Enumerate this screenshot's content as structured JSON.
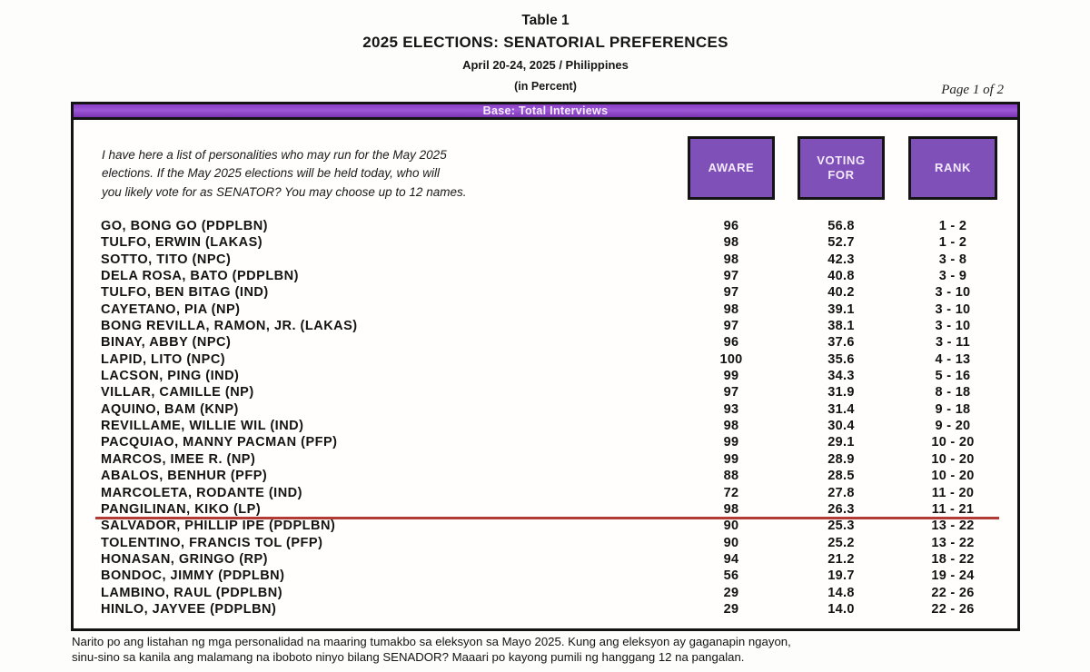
{
  "header": {
    "table_label": "Table 1",
    "title": "2025 ELECTIONS: SENATORIAL PREFERENCES",
    "subtitle": "April 20-24, 2025 / Philippines",
    "unit_note": "(in Percent)",
    "page_label": "Page 1 of 2"
  },
  "base_bar_label": "Base: Total Interviews",
  "question": {
    "lines": [
      "I have here a list of personalities who may run for the May 2025",
      "elections. If the May 2025 elections will be held today, who will",
      "you likely vote for as SENATOR? You may choose up to 12 names."
    ]
  },
  "columns": {
    "aware": "AWARE",
    "voting_for": "VOTING FOR",
    "rank": "RANK"
  },
  "table": {
    "rows": [
      {
        "name": "GO, BONG GO (PDPLBN)",
        "aware": "96",
        "voting_for": "56.8",
        "rank": "1 - 2",
        "underline_after": false
      },
      {
        "name": "TULFO, ERWIN (LAKAS)",
        "aware": "98",
        "voting_for": "52.7",
        "rank": "1 - 2",
        "underline_after": false
      },
      {
        "name": "SOTTO, TITO (NPC)",
        "aware": "98",
        "voting_for": "42.3",
        "rank": "3 - 8",
        "underline_after": false
      },
      {
        "name": "DELA ROSA, BATO (PDPLBN)",
        "aware": "97",
        "voting_for": "40.8",
        "rank": "3 - 9",
        "underline_after": false
      },
      {
        "name": "TULFO, BEN BITAG (IND)",
        "aware": "97",
        "voting_for": "40.2",
        "rank": "3 - 10",
        "underline_after": false
      },
      {
        "name": "CAYETANO, PIA (NP)",
        "aware": "98",
        "voting_for": "39.1",
        "rank": "3 - 10",
        "underline_after": false
      },
      {
        "name": "BONG REVILLA, RAMON, JR. (LAKAS)",
        "aware": "97",
        "voting_for": "38.1",
        "rank": "3 - 10",
        "underline_after": false
      },
      {
        "name": "BINAY, ABBY (NPC)",
        "aware": "96",
        "voting_for": "37.6",
        "rank": "3 - 11",
        "underline_after": false
      },
      {
        "name": "LAPID, LITO (NPC)",
        "aware": "100",
        "voting_for": "35.6",
        "rank": "4 - 13",
        "underline_after": false
      },
      {
        "name": "LACSON, PING (IND)",
        "aware": "99",
        "voting_for": "34.3",
        "rank": "5 - 16",
        "underline_after": false
      },
      {
        "name": "VILLAR, CAMILLE (NP)",
        "aware": "97",
        "voting_for": "31.9",
        "rank": "8 - 18",
        "underline_after": false
      },
      {
        "name": "AQUINO, BAM (KNP)",
        "aware": "93",
        "voting_for": "31.4",
        "rank": "9 - 18",
        "underline_after": false
      },
      {
        "name": "REVILLAME, WILLIE WIL (IND)",
        "aware": "98",
        "voting_for": "30.4",
        "rank": "9 - 20",
        "underline_after": false
      },
      {
        "name": "PACQUIAO, MANNY PACMAN (PFP)",
        "aware": "99",
        "voting_for": "29.1",
        "rank": "10 - 20",
        "underline_after": false
      },
      {
        "name": "MARCOS, IMEE R. (NP)",
        "aware": "99",
        "voting_for": "28.9",
        "rank": "10 - 20",
        "underline_after": false
      },
      {
        "name": "ABALOS, BENHUR (PFP)",
        "aware": "88",
        "voting_for": "28.5",
        "rank": "10 - 20",
        "underline_after": false
      },
      {
        "name": "MARCOLETA, RODANTE (IND)",
        "aware": "72",
        "voting_for": "27.8",
        "rank": "11 - 20",
        "underline_after": false
      },
      {
        "name": "PANGILINAN, KIKO (LP)",
        "aware": "98",
        "voting_for": "26.3",
        "rank": "11 - 21",
        "underline_after": true
      },
      {
        "name": "SALVADOR, PHILLIP IPE (PDPLBN)",
        "aware": "90",
        "voting_for": "25.3",
        "rank": "13 - 22",
        "underline_after": false
      },
      {
        "name": "TOLENTINO, FRANCIS TOL (PFP)",
        "aware": "90",
        "voting_for": "25.2",
        "rank": "13 - 22",
        "underline_after": false
      },
      {
        "name": "HONASAN, GRINGO (RP)",
        "aware": "94",
        "voting_for": "21.2",
        "rank": "18 - 22",
        "underline_after": false
      },
      {
        "name": "BONDOC, JIMMY (PDPLBN)",
        "aware": "56",
        "voting_for": "19.7",
        "rank": "19 - 24",
        "underline_after": false
      },
      {
        "name": "LAMBINO, RAUL (PDPLBN)",
        "aware": "29",
        "voting_for": "14.8",
        "rank": "22 - 26",
        "underline_after": false
      },
      {
        "name": "HINLO, JAYVEE (PDPLBN)",
        "aware": "29",
        "voting_for": "14.0",
        "rank": "22 - 26",
        "underline_after": false
      }
    ]
  },
  "footer": {
    "lines": [
      "Narito po ang listahan ng mga personalidad na maaring tumakbo sa eleksyon sa Mayo 2025. Kung ang eleksyon ay gaganapin ngayon,",
      "sinu-sino sa kanila ang malamang na iboboto ninyo bilang SENADOR?  Maaari po kayong pumili ng hanggang 12 na pangalan."
    ]
  },
  "colors": {
    "bar_purple": "#8a3ec6",
    "box_purple": "#8050b9",
    "underline_red": "#b23b36",
    "border_black": "#141414"
  }
}
